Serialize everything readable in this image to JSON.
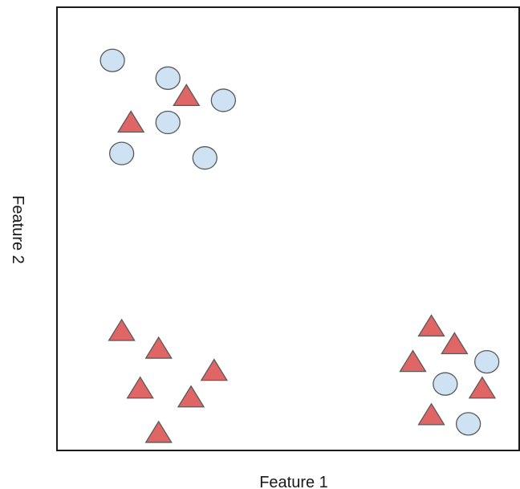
{
  "chart_data": {
    "type": "scatter",
    "title": "",
    "xlabel": "Feature 1",
    "ylabel": "Feature 2",
    "xlim": [
      0,
      10
    ],
    "ylim": [
      0,
      10
    ],
    "grid": false,
    "legend": "none",
    "series": [
      {
        "marker": "circle",
        "color": "#cfe2f3",
        "stroke": "#595959",
        "points": [
          {
            "x": 1.2,
            "y": 8.8
          },
          {
            "x": 2.4,
            "y": 8.4
          },
          {
            "x": 3.6,
            "y": 7.9
          },
          {
            "x": 2.4,
            "y": 7.4
          },
          {
            "x": 1.4,
            "y": 6.7
          },
          {
            "x": 3.2,
            "y": 6.6
          },
          {
            "x": 9.3,
            "y": 2.0
          },
          {
            "x": 8.4,
            "y": 1.5
          },
          {
            "x": 8.9,
            "y": 0.6
          }
        ]
      },
      {
        "marker": "triangle",
        "color": "#e06666",
        "stroke": "#595959",
        "points": [
          {
            "x": 2.8,
            "y": 8.0
          },
          {
            "x": 1.6,
            "y": 7.4
          },
          {
            "x": 1.4,
            "y": 2.7
          },
          {
            "x": 2.2,
            "y": 2.3
          },
          {
            "x": 3.4,
            "y": 1.8
          },
          {
            "x": 1.8,
            "y": 1.4
          },
          {
            "x": 2.9,
            "y": 1.2
          },
          {
            "x": 2.2,
            "y": 0.4
          },
          {
            "x": 8.1,
            "y": 2.8
          },
          {
            "x": 8.6,
            "y": 2.4
          },
          {
            "x": 7.7,
            "y": 2.0
          },
          {
            "x": 9.2,
            "y": 1.4
          },
          {
            "x": 8.1,
            "y": 0.8
          }
        ]
      }
    ]
  }
}
